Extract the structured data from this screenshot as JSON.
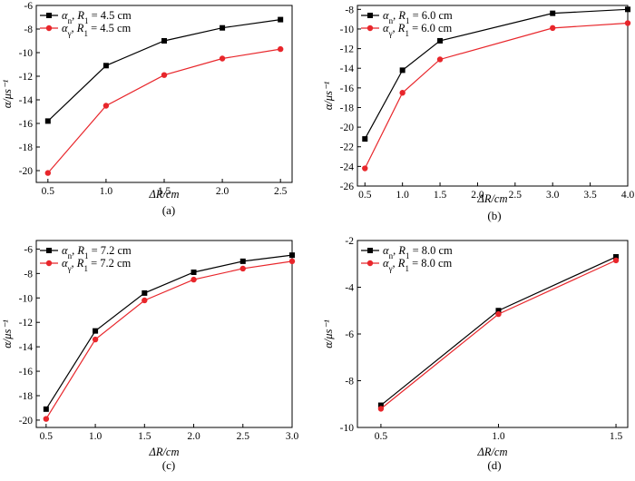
{
  "chart_data": [
    {
      "type": "line",
      "caption": "(a)",
      "xlabel": "ΔR/cm",
      "ylabel": "α/μs⁻¹",
      "xlim": [
        0.4,
        2.6
      ],
      "ylim": [
        -21,
        -6
      ],
      "xticks": [
        0.5,
        1.0,
        1.5,
        2.0,
        2.5
      ],
      "xtick_labels": [
        "0.5",
        "1.0",
        "1.5",
        "2.0",
        "2.5"
      ],
      "yticks": [
        -20,
        -18,
        -16,
        -14,
        -12,
        -10,
        -8,
        -6
      ],
      "ytick_labels": [
        "-20",
        "-18",
        "-16",
        "-14",
        "-12",
        "-10",
        "-8",
        "-6"
      ],
      "legend_position": "top-left",
      "grid": false,
      "x": [
        0.5,
        1.0,
        1.5,
        2.0,
        2.5
      ],
      "series": [
        {
          "name": "αn, R1 = 4.5 cm",
          "sym": "α",
          "sub": "n",
          "rest": ", R",
          "rsub": "1",
          "val": " = 4.5 cm",
          "color": "#000000",
          "marker": "square",
          "values": [
            -15.8,
            -11.1,
            -9.0,
            -7.9,
            -7.2
          ]
        },
        {
          "name": "αγ, R1 = 4.5 cm",
          "sym": "α",
          "sub": "γ",
          "rest": ", R",
          "rsub": "1",
          "val": " = 4.5 cm",
          "color": "#e8262b",
          "marker": "circle",
          "values": [
            -20.2,
            -14.5,
            -11.9,
            -10.5,
            -9.7
          ]
        }
      ]
    },
    {
      "type": "line",
      "caption": "(b)",
      "xlabel": "ΔR/cm",
      "ylabel": "α/μs⁻¹",
      "xlim": [
        0.4,
        4.0
      ],
      "ylim": [
        -26,
        -7.6
      ],
      "xticks": [
        0.5,
        1.0,
        1.5,
        2.0,
        2.5,
        3.0,
        3.5,
        4.0
      ],
      "xtick_labels": [
        "0.5",
        "1.0",
        "1.5",
        "2.0",
        "2.5",
        "3.0",
        "3.5",
        "4.0"
      ],
      "yticks": [
        -26,
        -24,
        -22,
        -20,
        -18,
        -16,
        -14,
        -12,
        -10,
        -8
      ],
      "ytick_labels": [
        "-26",
        "-24",
        "-22",
        "-20",
        "-18",
        "-16",
        "-14",
        "-12",
        "-10",
        "-8"
      ],
      "legend_position": "top-left",
      "grid": false,
      "x": [
        0.5,
        1.0,
        1.5,
        3.0,
        4.0
      ],
      "series": [
        {
          "name": "αn, R1 = 6.0 cm",
          "sym": "α",
          "sub": "n",
          "rest": ", R",
          "rsub": "1",
          "val": " = 6.0 cm",
          "color": "#000000",
          "marker": "square",
          "values": [
            -21.2,
            -14.2,
            -11.2,
            -8.4,
            -8.0
          ]
        },
        {
          "name": "αγ, R1 = 6.0 cm",
          "sym": "α",
          "sub": "γ",
          "rest": ", R",
          "rsub": "1",
          "val": " = 6.0 cm",
          "color": "#e8262b",
          "marker": "circle",
          "values": [
            -24.2,
            -16.5,
            -13.1,
            -9.9,
            -9.4
          ]
        }
      ]
    },
    {
      "type": "line",
      "caption": "(c)",
      "xlabel": "ΔR/cm",
      "ylabel": "α/μs⁻¹",
      "xlim": [
        0.4,
        3.0
      ],
      "ylim": [
        -20.6,
        -5.3
      ],
      "xticks": [
        0.5,
        1.0,
        1.5,
        2.0,
        2.5,
        3.0
      ],
      "xtick_labels": [
        "0.5",
        "1.0",
        "1.5",
        "2.0",
        "2.5",
        "3.0"
      ],
      "yticks": [
        -20,
        -18,
        -16,
        -14,
        -12,
        -10,
        -8,
        -6
      ],
      "ytick_labels": [
        "-20",
        "-18",
        "-16",
        "-14",
        "-12",
        "-10",
        "-8",
        "-6"
      ],
      "legend_position": "top-left",
      "grid": false,
      "x": [
        0.5,
        1.0,
        1.5,
        2.0,
        2.5,
        3.0
      ],
      "series": [
        {
          "name": "αn, R1 = 7.2 cm",
          "sym": "α",
          "sub": "n",
          "rest": ", R",
          "rsub": "1",
          "val": " = 7.2 cm",
          "color": "#000000",
          "marker": "square",
          "values": [
            -19.1,
            -12.7,
            -9.6,
            -7.9,
            -7.0,
            -6.5
          ]
        },
        {
          "name": "αγ, R1 = 7.2 cm",
          "sym": "α",
          "sub": "γ",
          "rest": ", R",
          "rsub": "1",
          "val": " = 7.2 cm",
          "color": "#e8262b",
          "marker": "circle",
          "values": [
            -19.9,
            -13.4,
            -10.2,
            -8.5,
            -7.6,
            -7.0
          ]
        }
      ]
    },
    {
      "type": "line",
      "caption": "(d)",
      "xlabel": "ΔR/cm",
      "ylabel": "α/μs⁻¹",
      "xlim": [
        0.4,
        1.55
      ],
      "ylim": [
        -10,
        -2
      ],
      "xticks": [
        0.5,
        1.0,
        1.5
      ],
      "xtick_labels": [
        "0.5",
        "1.0",
        "1.5"
      ],
      "yticks": [
        -10,
        -8,
        -6,
        -4,
        -2
      ],
      "ytick_labels": [
        "-10",
        "-8",
        "-6",
        "-4",
        "-2"
      ],
      "legend_position": "top-left",
      "grid": false,
      "x": [
        0.5,
        1.0,
        1.5
      ],
      "series": [
        {
          "name": "αn, R1 = 8.0 cm",
          "sym": "α",
          "sub": "n",
          "rest": ", R",
          "rsub": "1",
          "val": " = 8.0 cm",
          "color": "#000000",
          "marker": "square",
          "values": [
            -9.05,
            -5.0,
            -2.7
          ]
        },
        {
          "name": "αγ, R1 = 8.0 cm",
          "sym": "α",
          "sub": "γ",
          "rest": ", R",
          "rsub": "1",
          "val": " = 8.0 cm",
          "color": "#e8262b",
          "marker": "circle",
          "values": [
            -9.2,
            -5.15,
            -2.85
          ]
        }
      ]
    }
  ]
}
